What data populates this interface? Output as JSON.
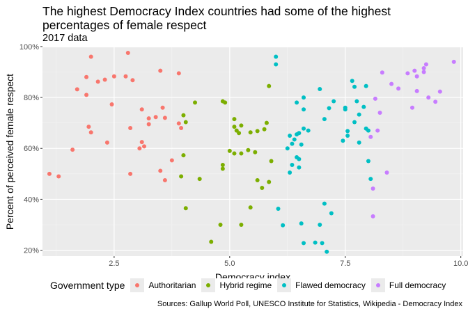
{
  "chart_data": {
    "type": "scatter",
    "title": "The highest Democracy Index countries had some of the highest percentages of female respect",
    "subtitle": "2017 data",
    "xlabel": "Democracy index",
    "ylabel": "Percent of perceived female respect",
    "caption": "Sources: Gallup World Poll, UNESCO Institute for Statistics, Wikipedia - Democracy Index",
    "xlim": [
      0.95,
      10.05
    ],
    "ylim": [
      17.7,
      99.7
    ],
    "x_ticks": [
      2.5,
      5.0,
      7.5,
      10.0
    ],
    "x_tick_labels": [
      "2.5",
      "5.0",
      "7.5",
      "10.0"
    ],
    "y_ticks": [
      20,
      40,
      60,
      80,
      100
    ],
    "y_tick_labels": [
      "20%",
      "40%",
      "60%",
      "80%",
      "100%"
    ],
    "grid": true,
    "legend": {
      "title": "Government type",
      "position": "bottom"
    },
    "series": [
      {
        "name": "Authoritarian",
        "color": "#F8766D",
        "points": [
          [
            2.8,
            97.5
          ],
          [
            2.0,
            96.0
          ],
          [
            3.5,
            90.5
          ],
          [
            3.9,
            89.5
          ],
          [
            1.9,
            88.0
          ],
          [
            2.5,
            88.3
          ],
          [
            2.75,
            88.3
          ],
          [
            2.3,
            87.0
          ],
          [
            2.15,
            86.2
          ],
          [
            2.9,
            86.8
          ],
          [
            1.7,
            83.2
          ],
          [
            1.9,
            81.0
          ],
          [
            2.45,
            77.3
          ],
          [
            3.1,
            75.3
          ],
          [
            3.55,
            76.0
          ],
          [
            3.6,
            72.0
          ],
          [
            3.4,
            72.3
          ],
          [
            3.25,
            71.8
          ],
          [
            3.25,
            69.5
          ],
          [
            3.9,
            69.8
          ],
          [
            3.95,
            68.0
          ],
          [
            1.95,
            68.5
          ],
          [
            2.0,
            66.3
          ],
          [
            2.85,
            68.0
          ],
          [
            2.35,
            62.3
          ],
          [
            3.1,
            62.5
          ],
          [
            3.05,
            60.0
          ],
          [
            3.15,
            60.8
          ],
          [
            1.6,
            59.5
          ],
          [
            3.75,
            55.3
          ],
          [
            3.5,
            51.2
          ],
          [
            3.6,
            47.5
          ],
          [
            2.85,
            50.0
          ],
          [
            1.1,
            50.0
          ],
          [
            1.3,
            49.0
          ]
        ]
      },
      {
        "name": "Hybrid regime",
        "color": "#7CAE00",
        "points": [
          [
            5.85,
            84.5
          ],
          [
            4.25,
            78.0
          ],
          [
            4.85,
            78.5
          ],
          [
            4.9,
            78.0
          ],
          [
            4.0,
            73.0
          ],
          [
            5.1,
            71.5
          ],
          [
            4.05,
            70.3
          ],
          [
            5.8,
            70.0
          ],
          [
            5.1,
            68.5
          ],
          [
            5.25,
            69.0
          ],
          [
            5.15,
            67.0
          ],
          [
            5.2,
            66.0
          ],
          [
            5.45,
            66.3
          ],
          [
            5.6,
            66.8
          ],
          [
            5.75,
            67.5
          ],
          [
            5.0,
            59.0
          ],
          [
            5.1,
            58.0
          ],
          [
            5.25,
            58.0
          ],
          [
            5.55,
            58.5
          ],
          [
            5.4,
            59.3
          ],
          [
            5.9,
            55.0
          ],
          [
            4.0,
            57.3
          ],
          [
            4.85,
            53.5
          ],
          [
            4.85,
            52.0
          ],
          [
            3.95,
            49.0
          ],
          [
            4.35,
            48.0
          ],
          [
            5.6,
            47.5
          ],
          [
            5.85,
            46.8
          ],
          [
            5.7,
            44.5
          ],
          [
            4.05,
            36.5
          ],
          [
            5.45,
            36.8
          ],
          [
            4.8,
            30.0
          ],
          [
            5.25,
            30.0
          ],
          [
            4.6,
            23.3
          ]
        ]
      },
      {
        "name": "Flawed democracy",
        "color": "#00BFC4",
        "points": [
          [
            6.0,
            96.0
          ],
          [
            6.0,
            93.0
          ],
          [
            7.65,
            86.5
          ],
          [
            7.7,
            84.2
          ],
          [
            7.95,
            84.5
          ],
          [
            6.95,
            83.3
          ],
          [
            6.6,
            80.0
          ],
          [
            6.45,
            78.0
          ],
          [
            7.25,
            78.5
          ],
          [
            7.75,
            78.5
          ],
          [
            7.9,
            76.3
          ],
          [
            6.6,
            75.3
          ],
          [
            7.5,
            76.0
          ],
          [
            7.5,
            75.3
          ],
          [
            7.15,
            75.8
          ],
          [
            7.8,
            73.3
          ],
          [
            7.05,
            71.5
          ],
          [
            7.7,
            70.3
          ],
          [
            6.7,
            67.0
          ],
          [
            6.5,
            66.0
          ],
          [
            6.6,
            67.8
          ],
          [
            6.45,
            65.5
          ],
          [
            7.55,
            66.8
          ],
          [
            7.95,
            67.8
          ],
          [
            8.0,
            67.0
          ],
          [
            6.3,
            65.0
          ],
          [
            7.55,
            65.0
          ],
          [
            6.4,
            63.5
          ],
          [
            7.45,
            63.0
          ],
          [
            7.8,
            62.3
          ],
          [
            6.55,
            61.5
          ],
          [
            6.35,
            61.8
          ],
          [
            6.25,
            60.0
          ],
          [
            6.45,
            56.5
          ],
          [
            6.5,
            55.8
          ],
          [
            6.35,
            53.5
          ],
          [
            6.5,
            52.5
          ],
          [
            6.3,
            50.5
          ],
          [
            8.0,
            55.0
          ],
          [
            8.05,
            48.0
          ],
          [
            7.05,
            38.3
          ],
          [
            6.05,
            36.3
          ],
          [
            7.2,
            34.5
          ],
          [
            6.15,
            29.8
          ],
          [
            6.55,
            30.5
          ],
          [
            6.95,
            30.0
          ],
          [
            6.6,
            22.8
          ],
          [
            6.85,
            23.0
          ],
          [
            7.0,
            22.8
          ],
          [
            7.1,
            19.4
          ]
        ]
      },
      {
        "name": "Full democracy",
        "color": "#C77CFF",
        "points": [
          [
            9.85,
            94.0
          ],
          [
            9.25,
            93.0
          ],
          [
            9.2,
            91.5
          ],
          [
            9.2,
            90.0
          ],
          [
            8.85,
            89.5
          ],
          [
            9.05,
            88.3
          ],
          [
            8.3,
            89.8
          ],
          [
            9.0,
            90.5
          ],
          [
            8.5,
            85.3
          ],
          [
            8.65,
            83.5
          ],
          [
            9.05,
            82.5
          ],
          [
            9.55,
            82.3
          ],
          [
            9.3,
            80.0
          ],
          [
            9.45,
            78.3
          ],
          [
            8.15,
            79.5
          ],
          [
            8.95,
            76.0
          ],
          [
            8.25,
            74.0
          ],
          [
            8.2,
            67.0
          ],
          [
            8.05,
            64.5
          ],
          [
            8.4,
            50.5
          ],
          [
            8.1,
            44.2
          ],
          [
            8.1,
            33.3
          ]
        ]
      }
    ]
  }
}
